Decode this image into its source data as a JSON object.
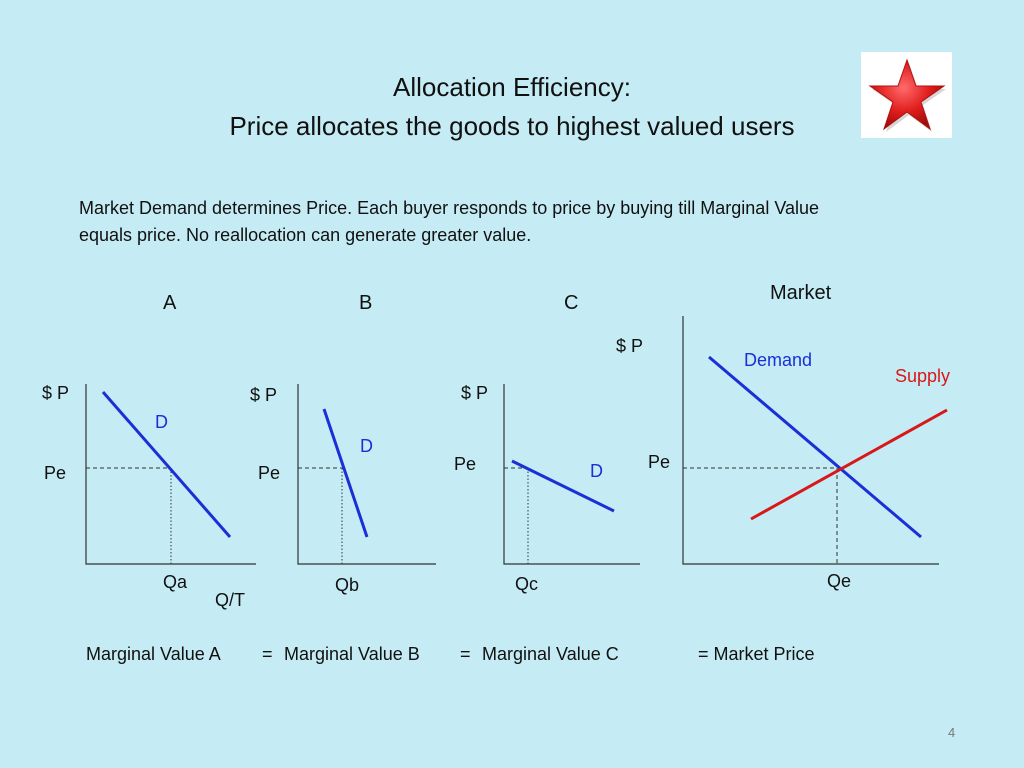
{
  "title": {
    "line1": "Allocation Efficiency:",
    "line2": "Price allocates the goods to highest valued users"
  },
  "body_text": "Market Demand determines Price. Each buyer responds to price by buying till Marginal Value equals price. No reallocation can generate greater value.",
  "graphs": {
    "a": {
      "heading": "A",
      "ylabel": "$ P",
      "price_label": "Pe",
      "qty_label": "Qa",
      "curve_label": "D",
      "xlabel": "Q/T"
    },
    "b": {
      "heading": "B",
      "ylabel": "$ P",
      "price_label": "Pe",
      "qty_label": "Qb",
      "curve_label": "D"
    },
    "c": {
      "heading": "C",
      "ylabel": "$ P",
      "price_label": "Pe",
      "qty_label": "Qc",
      "curve_label": "D"
    },
    "market": {
      "heading": "Market",
      "ylabel": "$ P",
      "price_label": "Pe",
      "qty_label": "Qe",
      "demand_label": "Demand",
      "supply_label": "Supply"
    }
  },
  "footer": {
    "mv_a": "Marginal Value A",
    "eq1": "=",
    "mv_b": "Marginal Value B",
    "eq2": "=",
    "mv_c": "Marginal Value C",
    "market_price": "= Market Price"
  },
  "page_number": "4",
  "colors": {
    "background": "#c5ecf4",
    "demand": "#1a2fd6",
    "supply": "#d81818",
    "star": "#e01b1b"
  },
  "icons": {
    "star": "red-star-icon"
  }
}
